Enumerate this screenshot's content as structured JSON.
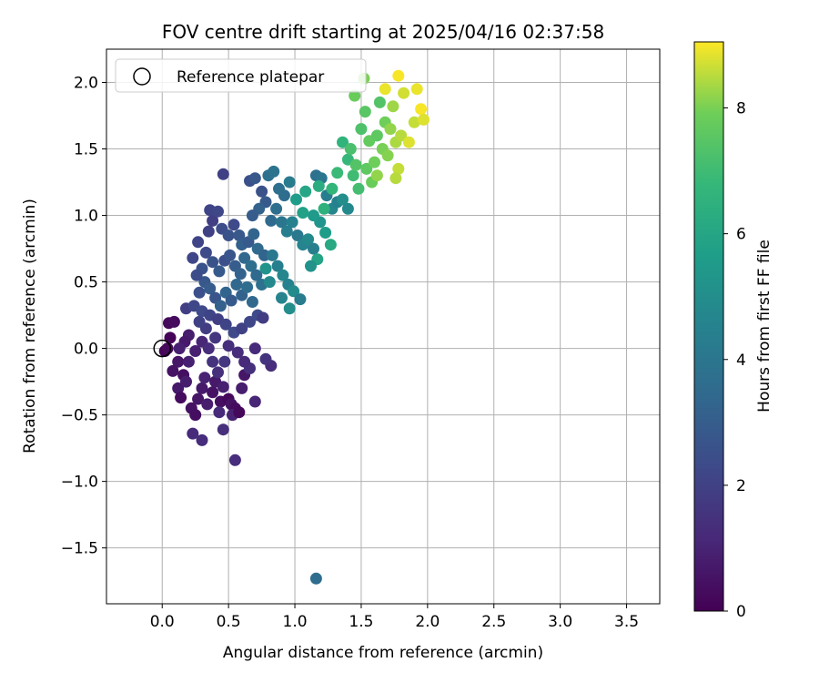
{
  "chart_data": {
    "type": "scatter",
    "title": "FOV centre drift starting at 2025/04/16 02:37:58",
    "xlabel": "Angular distance from reference (arcmin)",
    "ylabel": "Rotation from reference (arcmin)",
    "colorbar_label": "Hours from first FF file",
    "xlim": [
      -0.42,
      3.75
    ],
    "ylim": [
      -1.92,
      2.25
    ],
    "clim": [
      0,
      9.05
    ],
    "colormap": "viridis",
    "xticks": [
      0.0,
      0.5,
      1.0,
      1.5,
      2.0,
      2.5,
      3.0,
      3.5
    ],
    "xtick_labels": [
      "0.0",
      "0.5",
      "1.0",
      "1.5",
      "2.0",
      "2.5",
      "3.0",
      "3.5"
    ],
    "yticks": [
      -1.5,
      -1.0,
      -0.5,
      0.0,
      0.5,
      1.0,
      1.5,
      2.0
    ],
    "ytick_labels": [
      "−1.5",
      "−1.0",
      "−0.5",
      "0.0",
      "0.5",
      "1.0",
      "1.5",
      "2.0"
    ],
    "cticks": [
      0,
      2,
      4,
      6,
      8
    ],
    "ctick_labels": [
      "0",
      "2",
      "4",
      "6",
      "8"
    ],
    "grid": true,
    "legend": {
      "label": "Reference platepar",
      "placement": "top-left"
    },
    "reference_point": {
      "x": 0.0,
      "y": 0.0
    },
    "points": [
      [
        0.06,
        0.08,
        0.1
      ],
      [
        0.05,
        0.19,
        0.2
      ],
      [
        0.09,
        0.2,
        0.3
      ],
      [
        0.02,
        -0.02,
        0.1
      ],
      [
        0.04,
        0.0,
        0.2
      ],
      [
        0.08,
        -0.17,
        0.5
      ],
      [
        0.12,
        -0.1,
        0.6
      ],
      [
        0.16,
        -0.2,
        0.4
      ],
      [
        0.12,
        -0.3,
        0.7
      ],
      [
        0.14,
        -0.37,
        0.3
      ],
      [
        0.18,
        -0.25,
        0.8
      ],
      [
        0.2,
        -0.1,
        0.9
      ],
      [
        0.22,
        -0.45,
        0.5
      ],
      [
        0.25,
        -0.5,
        0.4
      ],
      [
        0.27,
        -0.38,
        0.6
      ],
      [
        0.3,
        -0.3,
        0.7
      ],
      [
        0.32,
        -0.22,
        1.0
      ],
      [
        0.34,
        -0.42,
        0.8
      ],
      [
        0.38,
        -0.33,
        0.5
      ],
      [
        0.4,
        -0.25,
        0.7
      ],
      [
        0.44,
        -0.4,
        0.4
      ],
      [
        0.46,
        -0.29,
        0.9
      ],
      [
        0.5,
        -0.38,
        0.2
      ],
      [
        0.52,
        -0.42,
        0.5
      ],
      [
        0.55,
        -0.45,
        0.3
      ],
      [
        0.53,
        -0.5,
        1.0
      ],
      [
        0.58,
        -0.48,
        0.2
      ],
      [
        0.6,
        -0.3,
        0.8
      ],
      [
        0.62,
        -0.2,
        0.6
      ],
      [
        0.25,
        -0.02,
        0.9
      ],
      [
        0.3,
        0.05,
        1.1
      ],
      [
        0.2,
        0.1,
        0.8
      ],
      [
        0.17,
        0.05,
        0.7
      ],
      [
        0.13,
        0.0,
        0.9
      ],
      [
        0.23,
        -0.64,
        1.2
      ],
      [
        0.3,
        -0.69,
        1.3
      ],
      [
        0.43,
        -0.48,
        1.2
      ],
      [
        0.46,
        -0.61,
        1.4
      ],
      [
        0.55,
        -0.84,
        1.3
      ],
      [
        0.7,
        -0.4,
        1.1
      ],
      [
        0.82,
        -0.13,
        1.3
      ],
      [
        0.78,
        -0.08,
        1.5
      ],
      [
        0.7,
        0.0,
        1.2
      ],
      [
        0.66,
        -0.15,
        1.4
      ],
      [
        0.62,
        -0.1,
        1.2
      ],
      [
        0.57,
        -0.03,
        1.3
      ],
      [
        0.5,
        0.02,
        1.4
      ],
      [
        0.47,
        -0.1,
        1.6
      ],
      [
        0.42,
        -0.18,
        1.4
      ],
      [
        0.38,
        -0.1,
        1.5
      ],
      [
        0.35,
        0.0,
        1.3
      ],
      [
        0.4,
        0.08,
        1.6
      ],
      [
        0.33,
        0.15,
        1.8
      ],
      [
        0.28,
        0.2,
        2.0
      ],
      [
        0.18,
        0.3,
        1.9
      ],
      [
        0.24,
        0.32,
        2.2
      ],
      [
        0.3,
        0.28,
        2.3
      ],
      [
        0.36,
        0.25,
        2.1
      ],
      [
        0.42,
        0.22,
        1.9
      ],
      [
        0.48,
        0.18,
        2.1
      ],
      [
        0.54,
        0.12,
        2.3
      ],
      [
        0.6,
        0.15,
        2.0
      ],
      [
        0.66,
        0.2,
        2.2
      ],
      [
        0.72,
        0.25,
        2.3
      ],
      [
        0.76,
        0.23,
        1.8
      ],
      [
        0.28,
        0.42,
        2.5
      ],
      [
        0.32,
        0.5,
        2.8
      ],
      [
        0.36,
        0.45,
        3.0
      ],
      [
        0.4,
        0.38,
        2.7
      ],
      [
        0.44,
        0.32,
        3.1
      ],
      [
        0.48,
        0.42,
        3.3
      ],
      [
        0.52,
        0.36,
        2.9
      ],
      [
        0.56,
        0.48,
        3.4
      ],
      [
        0.6,
        0.4,
        3.2
      ],
      [
        0.64,
        0.46,
        3.6
      ],
      [
        0.68,
        0.35,
        3.4
      ],
      [
        0.3,
        0.6,
        2.6
      ],
      [
        0.26,
        0.55,
        2.4
      ],
      [
        0.23,
        0.68,
        2.2
      ],
      [
        0.27,
        0.8,
        2.1
      ],
      [
        0.33,
        0.72,
        2.3
      ],
      [
        0.38,
        0.65,
        2.6
      ],
      [
        0.43,
        0.58,
        2.9
      ],
      [
        0.47,
        0.66,
        2.5
      ],
      [
        0.51,
        0.7,
        2.7
      ],
      [
        0.55,
        0.62,
        3.0
      ],
      [
        0.59,
        0.56,
        3.2
      ],
      [
        0.62,
        0.68,
        3.4
      ],
      [
        0.67,
        0.62,
        3.7
      ],
      [
        0.71,
        0.55,
        3.5
      ],
      [
        0.75,
        0.48,
        3.8
      ],
      [
        0.35,
        0.88,
        2.0
      ],
      [
        0.38,
        0.96,
        1.9
      ],
      [
        0.36,
        1.04,
        2.1
      ],
      [
        0.42,
        1.03,
        2.2
      ],
      [
        0.45,
        0.9,
        2.4
      ],
      [
        0.5,
        0.85,
        2.6
      ],
      [
        0.54,
        0.93,
        2.3
      ],
      [
        0.58,
        0.85,
        2.8
      ],
      [
        0.6,
        0.78,
        3.1
      ],
      [
        0.65,
        0.8,
        2.9
      ],
      [
        0.69,
        0.86,
        3.3
      ],
      [
        0.72,
        0.75,
        3.5
      ],
      [
        0.77,
        0.7,
        3.3
      ],
      [
        0.46,
        1.31,
        2.0
      ],
      [
        0.66,
        1.26,
        2.5
      ],
      [
        0.7,
        1.28,
        2.8
      ],
      [
        0.75,
        1.18,
        2.6
      ],
      [
        0.78,
        1.1,
        2.9
      ],
      [
        0.73,
        1.05,
        3.2
      ],
      [
        0.68,
        1.0,
        3.0
      ],
      [
        0.82,
        0.96,
        3.5
      ],
      [
        0.8,
        1.3,
        3.8
      ],
      [
        0.84,
        1.33,
        3.9
      ],
      [
        0.88,
        1.2,
        3.7
      ],
      [
        0.92,
        1.15,
        3.6
      ],
      [
        0.96,
        1.25,
        4.2
      ],
      [
        0.86,
        1.05,
        3.7
      ],
      [
        0.9,
        0.95,
        4.0
      ],
      [
        0.94,
        0.88,
        4.3
      ],
      [
        0.98,
        0.95,
        4.5
      ],
      [
        1.02,
        0.85,
        4.1
      ],
      [
        1.06,
        0.78,
        4.6
      ],
      [
        1.1,
        0.82,
        4.8
      ],
      [
        1.14,
        0.75,
        4.4
      ],
      [
        0.83,
        0.7,
        4.1
      ],
      [
        0.87,
        0.62,
        4.4
      ],
      [
        0.91,
        0.55,
        4.7
      ],
      [
        0.95,
        0.48,
        4.5
      ],
      [
        0.99,
        0.43,
        4.9
      ],
      [
        0.9,
        0.38,
        4.6
      ],
      [
        0.96,
        0.3,
        5.0
      ],
      [
        1.04,
        0.37,
        4.2
      ],
      [
        0.78,
        0.6,
        5.2
      ],
      [
        0.81,
        0.5,
        4.8
      ],
      [
        1.16,
        1.3,
        3.8
      ],
      [
        1.2,
        1.28,
        4.0
      ],
      [
        1.24,
        1.15,
        4.3
      ],
      [
        1.28,
        1.05,
        4.7
      ],
      [
        1.32,
        1.1,
        4.5
      ],
      [
        1.36,
        1.12,
        5.0
      ],
      [
        1.4,
        1.05,
        4.8
      ],
      [
        1.19,
        0.95,
        5.3
      ],
      [
        1.23,
        0.87,
        5.6
      ],
      [
        1.27,
        0.78,
        6.1
      ],
      [
        1.17,
        0.67,
        5.9
      ],
      [
        1.12,
        0.62,
        5.2
      ],
      [
        1.14,
        1.0,
        5.5
      ],
      [
        1.06,
        1.02,
        5.8
      ],
      [
        1.01,
        1.12,
        5.6
      ],
      [
        1.08,
        1.18,
        6.0
      ],
      [
        1.18,
        1.22,
        6.3
      ],
      [
        1.22,
        1.05,
        6.5
      ],
      [
        1.28,
        1.2,
        6.7
      ],
      [
        1.32,
        1.32,
        6.9
      ],
      [
        1.36,
        1.55,
        6.6
      ],
      [
        1.4,
        1.42,
        6.8
      ],
      [
        1.44,
        1.3,
        7.0
      ],
      [
        1.48,
        1.2,
        7.1
      ],
      [
        1.42,
        1.5,
        7.2
      ],
      [
        1.46,
        1.38,
        7.4
      ],
      [
        1.5,
        1.65,
        7.3
      ],
      [
        1.53,
        1.78,
        7.5
      ],
      [
        1.56,
        1.56,
        7.7
      ],
      [
        1.54,
        1.35,
        7.6
      ],
      [
        1.58,
        1.25,
        7.8
      ],
      [
        1.6,
        1.4,
        7.9
      ],
      [
        1.62,
        1.6,
        7.6
      ],
      [
        1.64,
        1.85,
        7.4
      ],
      [
        1.66,
        1.5,
        8.0
      ],
      [
        1.68,
        1.7,
        7.9
      ],
      [
        1.7,
        1.45,
        8.1
      ],
      [
        1.72,
        1.65,
        8.2
      ],
      [
        1.74,
        1.82,
        8.3
      ],
      [
        1.76,
        1.55,
        8.4
      ],
      [
        1.78,
        1.35,
        8.6
      ],
      [
        1.8,
        1.6,
        8.5
      ],
      [
        1.82,
        1.92,
        8.7
      ],
      [
        1.86,
        1.55,
        8.8
      ],
      [
        1.9,
        1.7,
        8.6
      ],
      [
        1.92,
        1.95,
        8.9
      ],
      [
        1.95,
        1.8,
        9.0
      ],
      [
        1.97,
        1.72,
        8.8
      ],
      [
        1.78,
        2.05,
        9.0
      ],
      [
        1.68,
        1.95,
        8.9
      ],
      [
        1.76,
        1.28,
        8.5
      ],
      [
        1.62,
        1.3,
        8.2
      ],
      [
        1.52,
        2.03,
        8.0
      ],
      [
        1.45,
        1.9,
        7.8
      ],
      [
        1.16,
        -1.73,
        3.6
      ]
    ]
  }
}
